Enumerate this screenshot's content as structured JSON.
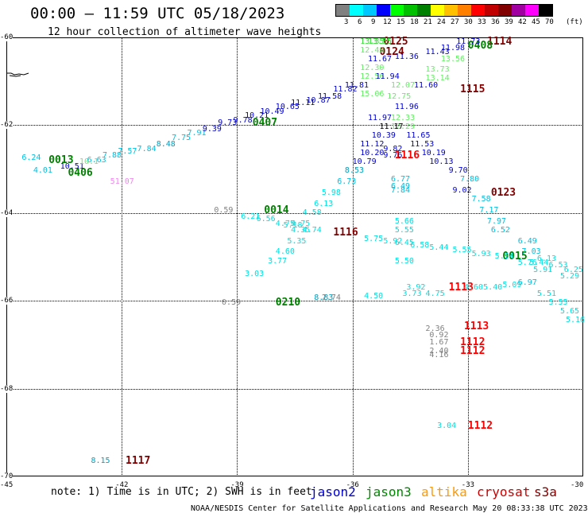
{
  "header": {
    "title": "00:00 – 11:59 UTC 05/18/2023",
    "subtitle": "12 hour collection of altimeter wave heights"
  },
  "colorbar": {
    "unit": "(ft)",
    "labels": [
      "3",
      "6",
      "9",
      "12",
      "15",
      "18",
      "21",
      "24",
      "27",
      "30",
      "33",
      "36",
      "39",
      "42",
      "45",
      "70"
    ],
    "colors": [
      "#808080",
      "#00ffff",
      "#00c8ff",
      "#0000ff",
      "#00ff00",
      "#00c000",
      "#008000",
      "#ffff00",
      "#ffc000",
      "#ff8000",
      "#ff0000",
      "#c00000",
      "#800000",
      "#a000a0",
      "#ff00ff",
      "#000000"
    ]
  },
  "axes": {
    "lat_labels": [
      "-60",
      "-62",
      "-64",
      "-66",
      "-68",
      "-70"
    ],
    "lon_labels": [
      "-45",
      "-42",
      "-39",
      "-36",
      "-33",
      "-30"
    ]
  },
  "footer": {
    "note": "note: 1) Time is in UTC; 2) SWH is in feet",
    "credit": "NOAA/NESDIS Center for Satellite Applications and Research   May 20 08:33:38 UTC 2023",
    "satellites": [
      {
        "name": "jason2",
        "color": "#0000cc"
      },
      {
        "name": "jason3",
        "color": "#008800"
      },
      {
        "name": "altika",
        "color": "#ff9900"
      },
      {
        "name": "cryosat",
        "color": "#cc0000"
      },
      {
        "name": "s3a",
        "color": "#800000"
      }
    ]
  },
  "chart_data": {
    "type": "scatter",
    "title": "00:00 – 11:59 UTC 05/18/2023",
    "subtitle": "12 hour collection of altimeter wave heights",
    "xlim": [
      -45,
      -30
    ],
    "ylim": [
      -70,
      -60
    ],
    "pass_times": [
      {
        "label": "0125",
        "lon": -35.2,
        "lat": -60.1,
        "color": "#800000"
      },
      {
        "label": "0124",
        "lon": -35.3,
        "lat": -60.35,
        "color": "#800000"
      },
      {
        "label": "1114",
        "lon": -32.5,
        "lat": -60.1,
        "color": "#800000"
      },
      {
        "label": "0408",
        "lon": -33.0,
        "lat": -60.2,
        "color": "#008000"
      },
      {
        "label": "1115",
        "lon": -33.2,
        "lat": -61.2,
        "color": "#800000"
      },
      {
        "label": "0407",
        "lon": -38.6,
        "lat": -61.95,
        "color": "#008000"
      },
      {
        "label": "0013",
        "lon": -43.9,
        "lat": -62.8,
        "color": "#008000"
      },
      {
        "label": "0406",
        "lon": -43.4,
        "lat": -63.1,
        "color": "#008000"
      },
      {
        "label": "1116",
        "lon": -34.9,
        "lat": -62.7,
        "color": "#ff0000"
      },
      {
        "label": "0123",
        "lon": -32.4,
        "lat": -63.55,
        "color": "#800000"
      },
      {
        "label": "0014",
        "lon": -38.3,
        "lat": -63.95,
        "color": "#008000"
      },
      {
        "label": "1116",
        "lon": -36.5,
        "lat": -64.45,
        "color": "#800000"
      },
      {
        "label": "0015",
        "lon": -32.1,
        "lat": -65.0,
        "color": "#008000"
      },
      {
        "label": "1113",
        "lon": -33.5,
        "lat": -65.7,
        "color": "#ff0000"
      },
      {
        "label": "0210",
        "lon": -38.0,
        "lat": -66.05,
        "color": "#008000"
      },
      {
        "label": "1113",
        "lon": -33.1,
        "lat": -66.6,
        "color": "#ff0000"
      },
      {
        "label": "1112",
        "lon": -33.2,
        "lat": -66.95,
        "color": "#ff0000"
      },
      {
        "label": "1112",
        "lon": -33.2,
        "lat": -67.15,
        "color": "#ff0000"
      },
      {
        "label": "1112",
        "lon": -33.0,
        "lat": -68.85,
        "color": "#ff0000"
      },
      {
        "label": "1117",
        "lon": -41.9,
        "lat": -69.65,
        "color": "#800000"
      }
    ],
    "points": [
      {
        "v": "13.35",
        "lon": -35.8,
        "lat": -60.1,
        "c": "#33dd33"
      },
      {
        "v": "13.55",
        "lon": -35.6,
        "lat": -60.1,
        "c": "#33dd33"
      },
      {
        "v": "12.48",
        "lon": -35.8,
        "lat": -60.3,
        "c": "#66ee66"
      },
      {
        "v": "11.73",
        "lon": -33.3,
        "lat": -60.1,
        "c": "#0000cc"
      },
      {
        "v": "11.98",
        "lon": -33.7,
        "lat": -60.25,
        "c": "#0000cc"
      },
      {
        "v": "11.43",
        "lon": -34.1,
        "lat": -60.35,
        "c": "#0000cc"
      },
      {
        "v": "13.56",
        "lon": -33.7,
        "lat": -60.5,
        "c": "#66ee66"
      },
      {
        "v": "11.67",
        "lon": -35.6,
        "lat": -60.5,
        "c": "#0000cc"
      },
      {
        "v": "11.36",
        "lon": -34.9,
        "lat": -60.45,
        "c": "#0000cc"
      },
      {
        "v": "12.30",
        "lon": -35.8,
        "lat": -60.7,
        "c": "#66ee66"
      },
      {
        "v": "13.73",
        "lon": -34.1,
        "lat": -60.75,
        "c": "#66ee66"
      },
      {
        "v": "12.56",
        "lon": -35.8,
        "lat": -60.9,
        "c": "#66ee66"
      },
      {
        "v": "11.94",
        "lon": -35.4,
        "lat": -60.9,
        "c": "#0000cc"
      },
      {
        "v": "13.14",
        "lon": -34.1,
        "lat": -60.95,
        "c": "#66ee66"
      },
      {
        "v": "12.07",
        "lon": -35.0,
        "lat": -61.1,
        "c": "#66ee66"
      },
      {
        "v": "11.60",
        "lon": -34.4,
        "lat": -61.1,
        "c": "#0000cc"
      },
      {
        "v": "15.06",
        "lon": -35.8,
        "lat": -61.3,
        "c": "#66ee66"
      },
      {
        "v": "12.75",
        "lon": -35.1,
        "lat": -61.35,
        "c": "#66ee66"
      },
      {
        "v": "11.96",
        "lon": -34.9,
        "lat": -61.6,
        "c": "#0000cc"
      },
      {
        "v": "11.97",
        "lon": -35.6,
        "lat": -61.85,
        "c": "#0000cc"
      },
      {
        "v": "12.33",
        "lon": -35.0,
        "lat": -61.85,
        "c": "#66ee66"
      },
      {
        "v": "12.29",
        "lon": -35.0,
        "lat": -62.05,
        "c": "#66ee66"
      },
      {
        "v": "11.17",
        "lon": -35.3,
        "lat": -62.05,
        "c": "#000000"
      },
      {
        "v": "10.39",
        "lon": -35.5,
        "lat": -62.25,
        "c": "#0000cc"
      },
      {
        "v": "11.65",
        "lon": -34.6,
        "lat": -62.25,
        "c": "#0000cc"
      },
      {
        "v": "11.12",
        "lon": -35.8,
        "lat": -62.45,
        "c": "#0000cc"
      },
      {
        "v": "11.53",
        "lon": -34.5,
        "lat": -62.45,
        "c": "#0000cc"
      },
      {
        "v": "9.82",
        "lon": -35.2,
        "lat": -62.55,
        "c": "#0000cc"
      },
      {
        "v": "10.20",
        "lon": -35.8,
        "lat": -62.65,
        "c": "#0000cc"
      },
      {
        "v": "9.76",
        "lon": -35.2,
        "lat": -62.7,
        "c": "#0000cc"
      },
      {
        "v": "10.19",
        "lon": -34.2,
        "lat": -62.65,
        "c": "#0000cc"
      },
      {
        "v": "10.13",
        "lon": -34.0,
        "lat": -62.85,
        "c": "#0000cc"
      },
      {
        "v": "10.79",
        "lon": -36.0,
        "lat": -62.85,
        "c": "#0000cc"
      },
      {
        "v": "9.70",
        "lon": -33.5,
        "lat": -63.05,
        "c": "#0000cc"
      },
      {
        "v": "8.53",
        "lon": -36.2,
        "lat": -63.05,
        "c": "#00a0c0"
      },
      {
        "v": "6.73",
        "lon": -36.4,
        "lat": -63.3,
        "c": "#00c0e0"
      },
      {
        "v": "6.77",
        "lon": -35.0,
        "lat": -63.25,
        "c": "#00c0e0"
      },
      {
        "v": "7.80",
        "lon": -33.2,
        "lat": -63.25,
        "c": "#00c0e0"
      },
      {
        "v": "6.49",
        "lon": -35.0,
        "lat": -63.4,
        "c": "#00c0e0"
      },
      {
        "v": "7.84",
        "lon": -35.0,
        "lat": -63.5,
        "c": "#00c0e0"
      },
      {
        "v": "9.02",
        "lon": -33.4,
        "lat": -63.5,
        "c": "#0000cc"
      },
      {
        "v": "5.98",
        "lon": -36.8,
        "lat": -63.55,
        "c": "#00e0e0"
      },
      {
        "v": "7.58",
        "lon": -32.9,
        "lat": -63.7,
        "c": "#00c0e0"
      },
      {
        "v": "6.13",
        "lon": -37.0,
        "lat": -63.8,
        "c": "#00e0e0"
      },
      {
        "v": "7.17",
        "lon": -32.7,
        "lat": -63.95,
        "c": "#00c0e0"
      },
      {
        "v": "0.59",
        "lon": -39.6,
        "lat": -63.95,
        "c": "#808080"
      },
      {
        "v": "4.58",
        "lon": -37.3,
        "lat": -64.0,
        "c": "#00e0e0"
      },
      {
        "v": "6.21",
        "lon": -38.9,
        "lat": -64.1,
        "c": "#00e0e0"
      },
      {
        "v": "6.56",
        "lon": -38.5,
        "lat": -64.15,
        "c": "#00e0e0"
      },
      {
        "v": "5.66",
        "lon": -34.9,
        "lat": -64.2,
        "c": "#00e0e0"
      },
      {
        "v": "7.97",
        "lon": -32.5,
        "lat": -64.2,
        "c": "#00c0e0"
      },
      {
        "v": "4.75",
        "lon": -37.6,
        "lat": -64.25,
        "c": "#00e0e0"
      },
      {
        "v": "4.75",
        "lon": -38.0,
        "lat": -64.25,
        "c": "#00e0e0"
      },
      {
        "v": "5.18",
        "lon": -37.8,
        "lat": -64.3,
        "c": "#00e0e0"
      },
      {
        "v": "4.35",
        "lon": -37.6,
        "lat": -64.4,
        "c": "#00e0e0"
      },
      {
        "v": "4.74",
        "lon": -37.3,
        "lat": -64.4,
        "c": "#00e0e0"
      },
      {
        "v": "5.55",
        "lon": -34.9,
        "lat": -64.4,
        "c": "#00e0e0"
      },
      {
        "v": "6.52",
        "lon": -32.4,
        "lat": -64.4,
        "c": "#00c0e0"
      },
      {
        "v": "5.35",
        "lon": -37.7,
        "lat": -64.65,
        "c": "#00e0e0"
      },
      {
        "v": "5.75",
        "lon": -35.7,
        "lat": -64.6,
        "c": "#00e0e0"
      },
      {
        "v": "5.92",
        "lon": -35.2,
        "lat": -64.65,
        "c": "#00e0e0"
      },
      {
        "v": "6.49",
        "lon": -31.7,
        "lat": -64.65,
        "c": "#00c0e0"
      },
      {
        "v": "6.45",
        "lon": -34.9,
        "lat": -64.7,
        "c": "#00e0e0"
      },
      {
        "v": "6.58",
        "lon": -34.5,
        "lat": -64.75,
        "c": "#00e0e0"
      },
      {
        "v": "5.44",
        "lon": -34.0,
        "lat": -64.8,
        "c": "#00e0e0"
      },
      {
        "v": "5.55",
        "lon": -33.4,
        "lat": -64.85,
        "c": "#00e0e0"
      },
      {
        "v": "4.60",
        "lon": -38.0,
        "lat": -64.9,
        "c": "#00e0e0"
      },
      {
        "v": "5.93",
        "lon": -32.9,
        "lat": -64.95,
        "c": "#00e0e0"
      },
      {
        "v": "7.03",
        "lon": -31.6,
        "lat": -64.9,
        "c": "#00c0e0"
      },
      {
        "v": "5.94",
        "lon": -32.3,
        "lat": -65.0,
        "c": "#00e0e0"
      },
      {
        "v": "6.13",
        "lon": -31.2,
        "lat": -65.05,
        "c": "#00e0e0"
      },
      {
        "v": "3.77",
        "lon": -38.2,
        "lat": -65.1,
        "c": "#00e0e0"
      },
      {
        "v": "5.50",
        "lon": -34.9,
        "lat": -65.1,
        "c": "#00e0e0"
      },
      {
        "v": "5.76",
        "lon": -31.7,
        "lat": -65.15,
        "c": "#00e0e0"
      },
      {
        "v": "5.44",
        "lon": -31.4,
        "lat": -65.15,
        "c": "#00e0e0"
      },
      {
        "v": "5.91",
        "lon": -31.3,
        "lat": -65.3,
        "c": "#00e0e0"
      },
      {
        "v": "6.53",
        "lon": -30.9,
        "lat": -65.2,
        "c": "#00e0e0"
      },
      {
        "v": "6.25",
        "lon": -30.5,
        "lat": -65.3,
        "c": "#00e0e0"
      },
      {
        "v": "5.29",
        "lon": -30.6,
        "lat": -65.45,
        "c": "#00e0e0"
      },
      {
        "v": "3.03",
        "lon": -38.8,
        "lat": -65.4,
        "c": "#00e0e0"
      },
      {
        "v": "3.92",
        "lon": -34.6,
        "lat": -65.7,
        "c": "#00e0e0"
      },
      {
        "v": "4.60",
        "lon": -33.1,
        "lat": -65.7,
        "c": "#00e0e0"
      },
      {
        "v": "5.09",
        "lon": -32.1,
        "lat": -65.65,
        "c": "#00e0e0"
      },
      {
        "v": "5.40",
        "lon": -32.6,
        "lat": -65.7,
        "c": "#00e0e0"
      },
      {
        "v": "6.97",
        "lon": -31.7,
        "lat": -65.6,
        "c": "#00c0e0"
      },
      {
        "v": "5.51",
        "lon": -31.2,
        "lat": -65.85,
        "c": "#00e0e0"
      },
      {
        "v": "3.73",
        "lon": -34.7,
        "lat": -65.85,
        "c": "#00e0e0"
      },
      {
        "v": "4.75",
        "lon": -34.1,
        "lat": -65.85,
        "c": "#00e0e0"
      },
      {
        "v": "4.50",
        "lon": -35.7,
        "lat": -65.9,
        "c": "#00e0e0"
      },
      {
        "v": "8.83",
        "lon": -37.0,
        "lat": -65.95,
        "c": "#00a0c0"
      },
      {
        "v": "2.74",
        "lon": -36.8,
        "lat": -65.95,
        "c": "#808080"
      },
      {
        "v": "0.59",
        "lon": -39.4,
        "lat": -66.05,
        "c": "#808080"
      },
      {
        "v": "5.55",
        "lon": -30.9,
        "lat": -66.05,
        "c": "#00e0e0"
      },
      {
        "v": "5.65",
        "lon": -30.6,
        "lat": -66.25,
        "c": "#00e0e0"
      },
      {
        "v": "5.16",
        "lon": -30.3,
        "lat": -66.45,
        "c": "#00e0e0"
      },
      {
        "v": "2.36",
        "lon": -34.1,
        "lat": -66.65,
        "c": "#808080"
      },
      {
        "v": "0.92",
        "lon": -34.0,
        "lat": -66.8,
        "c": "#808080"
      },
      {
        "v": "1.67",
        "lon": -34.0,
        "lat": -66.95,
        "c": "#808080"
      },
      {
        "v": "2.40",
        "lon": -34.0,
        "lat": -67.15,
        "c": "#808080"
      },
      {
        "v": "4.16",
        "lon": -34.0,
        "lat": -67.25,
        "c": "#808080"
      },
      {
        "v": "3.04",
        "lon": -33.8,
        "lat": -68.85,
        "c": "#00e0e0"
      },
      {
        "v": "8.15",
        "lon": -42.8,
        "lat": -69.65,
        "c": "#00a0c0"
      },
      {
        "v": "6.24",
        "lon": -44.6,
        "lat": -62.75,
        "c": "#00c0e0"
      },
      {
        "v": "4.01",
        "lon": -44.3,
        "lat": -63.05,
        "c": "#00c0e0"
      },
      {
        "v": "10.51",
        "lon": -43.6,
        "lat": -62.95,
        "c": "#0000cc"
      },
      {
        "v": "10.1",
        "lon": -43.1,
        "lat": -62.85,
        "c": "#66ee66"
      },
      {
        "v": "6.63",
        "lon": -42.9,
        "lat": -62.8,
        "c": "#00c0e0"
      },
      {
        "v": "7.88",
        "lon": -42.5,
        "lat": -62.7,
        "c": "#00c0e0"
      },
      {
        "v": "7.57",
        "lon": -42.1,
        "lat": -62.6,
        "c": "#00c0e0"
      },
      {
        "v": "7.84",
        "lon": -41.6,
        "lat": -62.55,
        "c": "#00c0e0"
      },
      {
        "v": "8.48",
        "lon": -41.1,
        "lat": -62.45,
        "c": "#00a0c0"
      },
      {
        "v": "7.75",
        "lon": -40.7,
        "lat": -62.3,
        "c": "#00c0e0"
      },
      {
        "v": "7.91",
        "lon": -40.3,
        "lat": -62.2,
        "c": "#00c0e0"
      },
      {
        "v": "9.39",
        "lon": -39.9,
        "lat": -62.1,
        "c": "#0000cc"
      },
      {
        "v": "9.73",
        "lon": -39.5,
        "lat": -61.95,
        "c": "#0000cc"
      },
      {
        "v": "9.78",
        "lon": -39.1,
        "lat": -61.9,
        "c": "#0000cc"
      },
      {
        "v": "10.21",
        "lon": -38.8,
        "lat": -61.8,
        "c": "#0000cc"
      },
      {
        "v": "10.49",
        "lon": -38.4,
        "lat": -61.7,
        "c": "#0000cc"
      },
      {
        "v": "10.65",
        "lon": -38.0,
        "lat": -61.6,
        "c": "#0000cc"
      },
      {
        "v": "11.11",
        "lon": -37.6,
        "lat": -61.5,
        "c": "#0000cc"
      },
      {
        "v": "10.87",
        "lon": -37.2,
        "lat": -61.45,
        "c": "#0000cc"
      },
      {
        "v": "11.58",
        "lon": -36.9,
        "lat": -61.35,
        "c": "#0000cc"
      },
      {
        "v": "11.82",
        "lon": -36.5,
        "lat": -61.2,
        "c": "#0000cc"
      },
      {
        "v": "11.81",
        "lon": -36.2,
        "lat": -61.1,
        "c": "#0000cc"
      },
      {
        "v": "51.07",
        "lon": -42.3,
        "lat": -63.3,
        "c": "#ee88ee"
      }
    ]
  }
}
